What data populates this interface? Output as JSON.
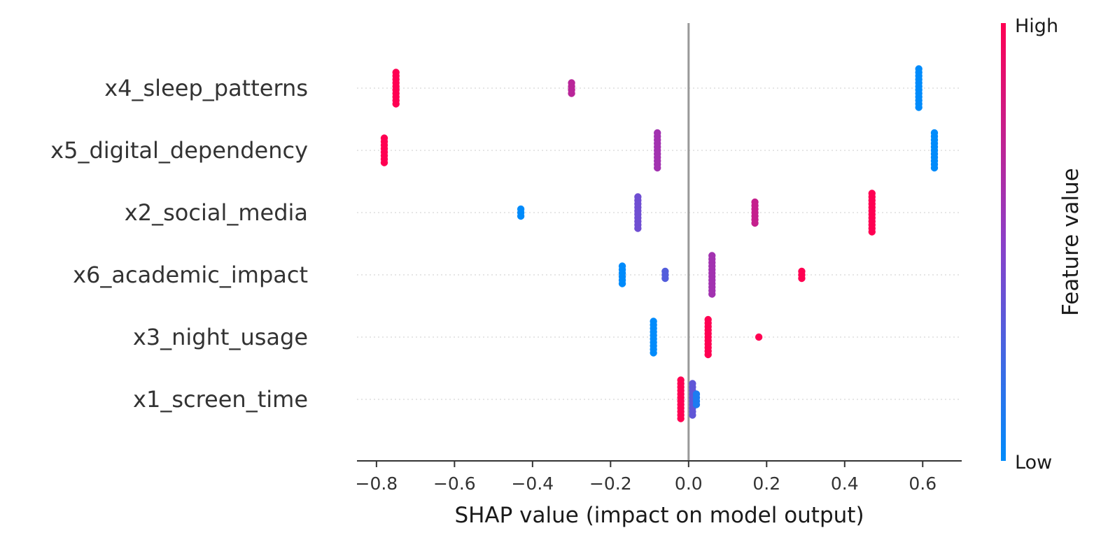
{
  "chart_data": {
    "type": "scatter",
    "subtype": "shap-beeswarm",
    "xlabel": "SHAP value (impact on model output)",
    "xlim": [
      -0.85,
      0.7
    ],
    "xticks": [
      -0.8,
      -0.6,
      -0.4,
      -0.2,
      0.0,
      0.2,
      0.4,
      0.6
    ],
    "xtick_labels": [
      "−0.8",
      "−0.6",
      "−0.4",
      "−0.2",
      "0.0",
      "0.2",
      "0.4",
      "0.6"
    ],
    "zero_line": 0.0,
    "colorbar": {
      "title": "Feature value",
      "high_label": "High",
      "low_label": "Low",
      "high_color": "#ff0052",
      "low_color": "#008bfb"
    },
    "features": [
      {
        "name": "x4_sleep_patterns",
        "clusters": [
          {
            "x": -0.75,
            "count": 10,
            "level": 1.0
          },
          {
            "x": -0.3,
            "count": 4,
            "level": 0.7
          },
          {
            "x": 0.59,
            "count": 12,
            "level": 0.0
          }
        ]
      },
      {
        "name": "x5_digital_dependency",
        "clusters": [
          {
            "x": -0.78,
            "count": 8,
            "level": 1.0
          },
          {
            "x": -0.08,
            "count": 11,
            "level": 0.6
          },
          {
            "x": 0.63,
            "count": 11,
            "level": 0.0
          }
        ]
      },
      {
        "name": "x2_social_media",
        "clusters": [
          {
            "x": -0.43,
            "count": 3,
            "level": 0.0
          },
          {
            "x": -0.13,
            "count": 10,
            "level": 0.4
          },
          {
            "x": 0.17,
            "count": 7,
            "level": 0.75
          },
          {
            "x": 0.47,
            "count": 12,
            "level": 1.0
          }
        ]
      },
      {
        "name": "x6_academic_impact",
        "clusters": [
          {
            "x": -0.17,
            "count": 6,
            "level": 0.0
          },
          {
            "x": -0.06,
            "count": 3,
            "level": 0.3
          },
          {
            "x": 0.06,
            "count": 12,
            "level": 0.6
          },
          {
            "x": 0.29,
            "count": 3,
            "level": 1.0
          }
        ]
      },
      {
        "name": "x3_night_usage",
        "clusters": [
          {
            "x": -0.09,
            "count": 10,
            "level": 0.0
          },
          {
            "x": 0.05,
            "count": 11,
            "level": 1.0
          },
          {
            "x": 0.18,
            "count": 1,
            "level": 1.0
          }
        ]
      },
      {
        "name": "x1_screen_time",
        "clusters": [
          {
            "x": -0.02,
            "count": 12,
            "level": 1.0
          },
          {
            "x": 0.01,
            "count": 10,
            "level": 0.35
          },
          {
            "x": 0.02,
            "count": 4,
            "level": 0.1
          }
        ]
      }
    ]
  }
}
